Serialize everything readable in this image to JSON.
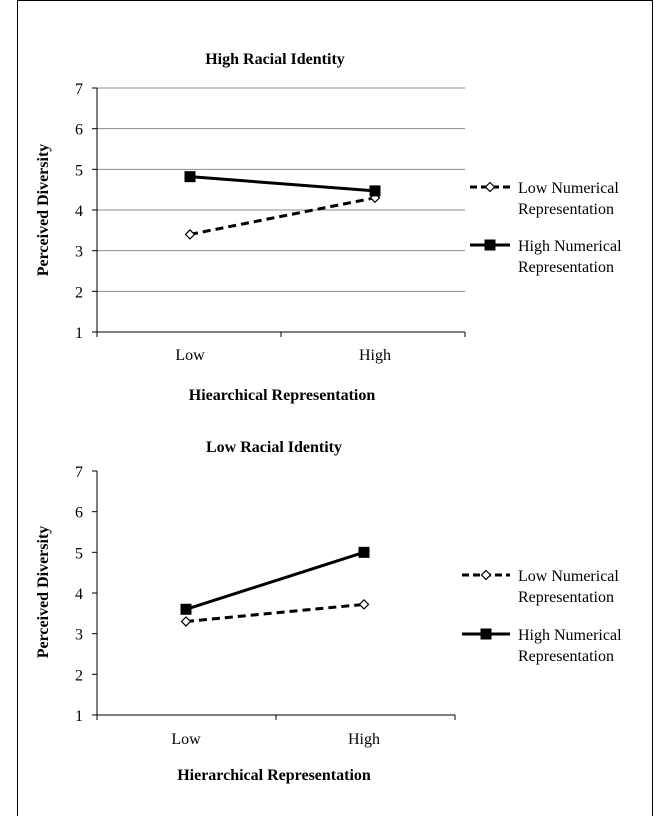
{
  "chart_data": [
    {
      "type": "line",
      "title": "High Racial Identity",
      "xlabel": "Hiearchical Representation",
      "ylabel": "Perceived Diversity",
      "categories": [
        "Low",
        "High"
      ],
      "yticks": [
        "1",
        "2",
        "3",
        "4",
        "5",
        "6",
        "7"
      ],
      "ylim": [
        1,
        7
      ],
      "grid": true,
      "legend_position": "right",
      "series": [
        {
          "name": "Low Numerical Representation",
          "name_lines": [
            "Low Numerical",
            "Representation"
          ],
          "values": [
            3.4,
            4.3
          ],
          "style": "dashed",
          "marker": "diamond-open",
          "color": "#000000"
        },
        {
          "name": "High Numerical Representation",
          "name_lines": [
            "High Numerical",
            "Representation"
          ],
          "values": [
            4.82,
            4.47
          ],
          "style": "solid",
          "marker": "square-filled",
          "color": "#000000"
        }
      ]
    },
    {
      "type": "line",
      "title": "Low Racial Identity",
      "xlabel": "Hierarchical Representation",
      "ylabel": "Perceived Diversity",
      "categories": [
        "Low",
        "High"
      ],
      "yticks": [
        "1",
        "2",
        "3",
        "4",
        "5",
        "6",
        "7"
      ],
      "ylim": [
        1,
        7
      ],
      "grid": false,
      "legend_position": "right",
      "series": [
        {
          "name": "Low Numerical Representation",
          "name_lines": [
            "Low Numerical",
            "Representation"
          ],
          "values": [
            3.3,
            3.72
          ],
          "style": "dashed",
          "marker": "diamond-open",
          "color": "#000000"
        },
        {
          "name": "High Numerical Representation",
          "name_lines": [
            "High Numerical",
            "Representation"
          ],
          "values": [
            3.6,
            5.0
          ],
          "style": "solid",
          "marker": "square-filled",
          "color": "#000000"
        }
      ]
    }
  ]
}
